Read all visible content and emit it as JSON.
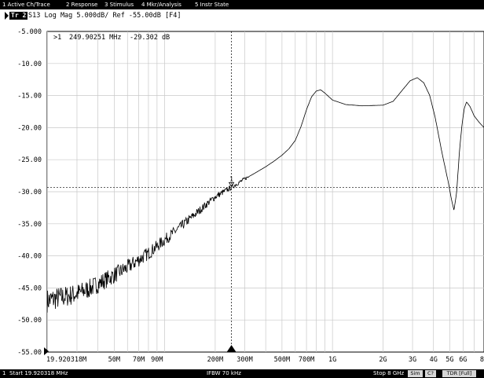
{
  "menu": {
    "items": [
      {
        "label": "1 Active Ch/Trace"
      },
      {
        "label": "2 Response"
      },
      {
        "label": "3 Stimulus"
      },
      {
        "label": "4 Mkr/Analysis"
      },
      {
        "label": "5 Instr State"
      }
    ]
  },
  "trace_header": {
    "badge": "Tr 2",
    "title": "S13 Log Mag 5.000dB/ Ref -55.00dB [F4]"
  },
  "marker_readout": {
    "label": ">1",
    "frequency": "249.90251 MHz",
    "value": "-29.302 dB"
  },
  "chart_data": {
    "type": "line",
    "trace": "S13",
    "format": "Log Mag",
    "x_scale": "log",
    "xlim_hz": [
      19920318,
      8000000000
    ],
    "ylim_db": [
      -55,
      -5
    ],
    "y_ticks": [
      {
        "label": "-5.000",
        "value": -5
      },
      {
        "label": "-10.00",
        "value": -10
      },
      {
        "label": "-15.00",
        "value": -15
      },
      {
        "label": "-20.00",
        "value": -20
      },
      {
        "label": "-25.00",
        "value": -25
      },
      {
        "label": "-30.00",
        "value": -30
      },
      {
        "label": "-35.00",
        "value": -35
      },
      {
        "label": "-40.00",
        "value": -40
      },
      {
        "label": "-45.00",
        "value": -45
      },
      {
        "label": "-50.00",
        "value": -50
      },
      {
        "label": "-55.00",
        "value": -55
      }
    ],
    "x_ticks": [
      {
        "label": "19.920318M",
        "value": 19920318,
        "anchor": "start"
      },
      {
        "label": "50M",
        "value": 50000000
      },
      {
        "label": "70M",
        "value": 70000000
      },
      {
        "label": "90M",
        "value": 90000000
      },
      {
        "label": "200M",
        "value": 200000000
      },
      {
        "label": "300M",
        "value": 300000000
      },
      {
        "label": "500M",
        "value": 500000000
      },
      {
        "label": "700M",
        "value": 700000000
      },
      {
        "label": "1G",
        "value": 1000000000
      },
      {
        "label": "2G",
        "value": 2000000000
      },
      {
        "label": "3G",
        "value": 3000000000
      },
      {
        "label": "4G",
        "value": 4000000000
      },
      {
        "label": "5G",
        "value": 5000000000
      },
      {
        "label": "6G",
        "value": 6000000000
      },
      {
        "label": "8G",
        "value": 8000000000
      }
    ],
    "marker": {
      "id": "1",
      "x_hz": 249902510,
      "y_db": -29.302
    },
    "series": [
      {
        "points": [
          [
            19920318,
            -47.0
          ],
          [
            22000000,
            -46.7
          ],
          [
            25000000,
            -46.4
          ],
          [
            30000000,
            -45.9
          ],
          [
            35000000,
            -45.2
          ],
          [
            40000000,
            -44.4
          ],
          [
            50000000,
            -43.0
          ],
          [
            60000000,
            -41.8
          ],
          [
            70000000,
            -40.6
          ],
          [
            80000000,
            -39.6
          ],
          [
            90000000,
            -38.5
          ],
          [
            100000000,
            -37.5
          ],
          [
            120000000,
            -35.8
          ],
          [
            140000000,
            -34.3
          ],
          [
            160000000,
            -33.0
          ],
          [
            180000000,
            -31.8
          ],
          [
            200000000,
            -30.8
          ],
          [
            249902510,
            -29.3
          ],
          [
            300000000,
            -28.0
          ],
          [
            350000000,
            -27.0
          ],
          [
            400000000,
            -26.1
          ],
          [
            450000000,
            -25.2
          ],
          [
            500000000,
            -24.3
          ],
          [
            550000000,
            -23.3
          ],
          [
            600000000,
            -22.0
          ],
          [
            650000000,
            -19.8
          ],
          [
            700000000,
            -17.2
          ],
          [
            750000000,
            -15.2
          ],
          [
            800000000,
            -14.3
          ],
          [
            850000000,
            -14.1
          ],
          [
            900000000,
            -14.6
          ],
          [
            1000000000,
            -15.7
          ],
          [
            1200000000,
            -16.4
          ],
          [
            1500000000,
            -16.6
          ],
          [
            2000000000,
            -16.5
          ],
          [
            2300000000,
            -15.9
          ],
          [
            2600000000,
            -14.2
          ],
          [
            2900000000,
            -12.7
          ],
          [
            3200000000,
            -12.2
          ],
          [
            3500000000,
            -13.0
          ],
          [
            3800000000,
            -15.0
          ],
          [
            4100000000,
            -18.5
          ],
          [
            4500000000,
            -24.0
          ],
          [
            4900000000,
            -28.5
          ],
          [
            5100000000,
            -31.0
          ],
          [
            5300000000,
            -32.9
          ],
          [
            5500000000,
            -30.0
          ],
          [
            5700000000,
            -24.0
          ],
          [
            5900000000,
            -19.8
          ],
          [
            6100000000,
            -17.0
          ],
          [
            6300000000,
            -16.0
          ],
          [
            6600000000,
            -16.7
          ],
          [
            7000000000,
            -18.2
          ],
          [
            7500000000,
            -19.2
          ],
          [
            8000000000,
            -20.0
          ]
        ]
      }
    ]
  },
  "status": {
    "channel": "1",
    "start": "Start 19.920318 MHz",
    "ifbw": "IFBW 70 kHz",
    "stop": "Stop 8 GHz",
    "sim": "Sim",
    "c_question": "C?",
    "tdr": "TDR [Full]"
  }
}
